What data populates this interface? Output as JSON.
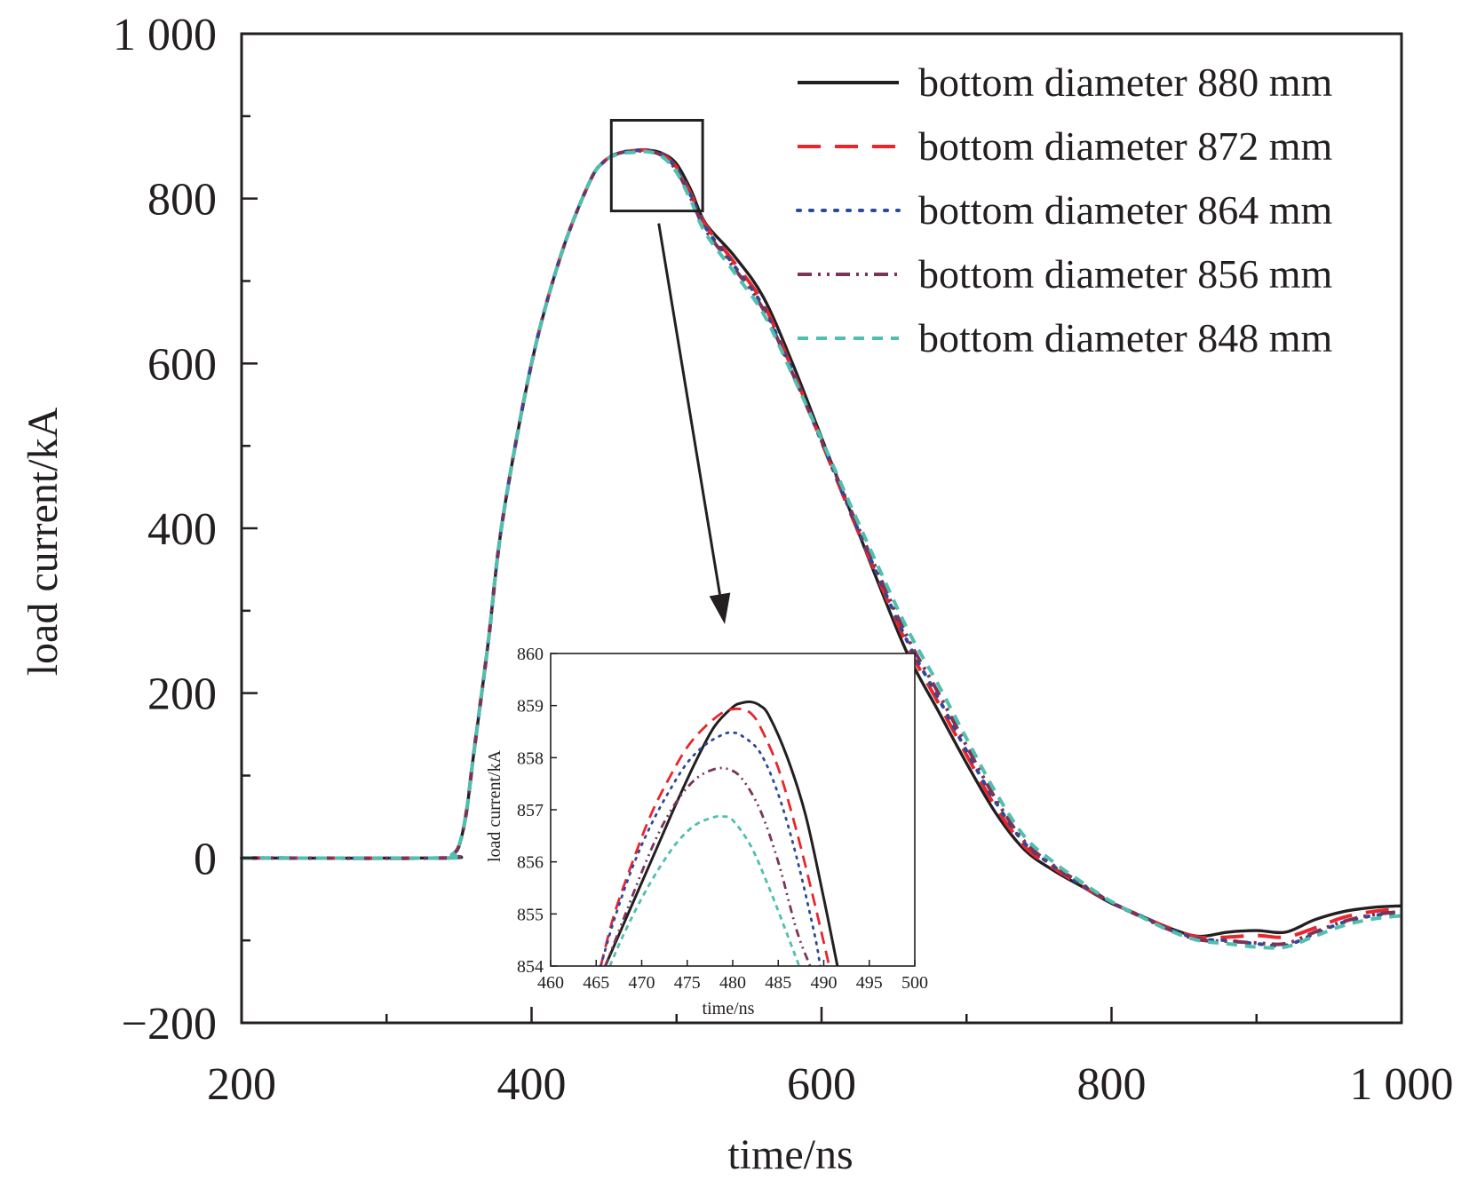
{
  "chart_data": [
    {
      "type": "line",
      "xlabel": "time/ns",
      "ylabel": "load current/kA",
      "xlim": [
        200,
        1000
      ],
      "ylim": [
        -200,
        1000
      ],
      "xticks": [
        "200",
        "400",
        "600",
        "800",
        "1 000"
      ],
      "xtick_values": [
        200,
        400,
        600,
        800,
        1000
      ],
      "yticks": [
        "−200",
        "0",
        "200",
        "400",
        "600",
        "800",
        "1 000"
      ],
      "ytick_values": [
        -200,
        0,
        200,
        400,
        600,
        800,
        1000
      ],
      "legend_position": "top-right",
      "series": [
        {
          "name": "bottom diameter 880 mm",
          "color": "#231f20",
          "dash": "solid",
          "x": [
            200,
            340,
            345,
            350,
            355,
            360,
            370,
            380,
            400,
            420,
            440,
            450,
            460,
            470,
            480,
            490,
            500,
            510,
            520,
            540,
            560,
            580,
            600,
            620,
            640,
            660,
            680,
            700,
            720,
            740,
            760,
            780,
            800,
            820,
            840,
            860,
            880,
            900,
            920,
            940,
            960,
            980,
            1000
          ],
          "y": [
            0,
            0,
            4,
            15,
            55,
            125,
            260,
            410,
            600,
            730,
            820,
            845,
            855,
            858,
            859,
            855,
            842,
            810,
            770,
            730,
            680,
            600,
            510,
            420,
            330,
            245,
            180,
            115,
            55,
            10,
            -15,
            -35,
            -55,
            -70,
            -85,
            -95,
            -90,
            -88,
            -90,
            -75,
            -65,
            -60,
            -58
          ]
        },
        {
          "name": "bottom diameter 872 mm",
          "color": "#e8262c",
          "dash": "long-dash",
          "x": [
            200,
            340,
            345,
            350,
            355,
            360,
            370,
            380,
            400,
            420,
            440,
            450,
            460,
            470,
            480,
            490,
            500,
            510,
            520,
            540,
            560,
            580,
            600,
            620,
            640,
            660,
            680,
            700,
            720,
            740,
            760,
            780,
            800,
            820,
            840,
            860,
            880,
            900,
            920,
            940,
            960,
            980,
            1000
          ],
          "y": [
            0,
            0,
            4,
            15,
            55,
            125,
            260,
            410,
            600,
            730,
            820,
            845,
            855,
            858,
            858.9,
            854,
            838,
            805,
            768,
            722,
            672,
            592,
            505,
            418,
            335,
            255,
            190,
            125,
            62,
            14,
            -12,
            -34,
            -54,
            -70,
            -85,
            -96,
            -96,
            -94,
            -96,
            -85,
            -72,
            -65,
            -62
          ]
        },
        {
          "name": "bottom diameter 864 mm",
          "color": "#2c4a9b",
          "dash": "dot",
          "x": [
            200,
            340,
            345,
            350,
            355,
            360,
            370,
            380,
            400,
            420,
            440,
            450,
            460,
            470,
            480,
            490,
            500,
            510,
            520,
            540,
            560,
            580,
            600,
            620,
            640,
            660,
            680,
            700,
            720,
            740,
            760,
            780,
            800,
            820,
            840,
            860,
            880,
            900,
            920,
            940,
            960,
            980,
            1000
          ],
          "y": [
            0,
            0,
            4,
            15,
            55,
            125,
            260,
            410,
            600,
            730,
            820,
            845,
            855,
            858,
            858.5,
            853,
            836,
            803,
            765,
            718,
            668,
            590,
            505,
            420,
            338,
            260,
            196,
            130,
            68,
            18,
            -10,
            -33,
            -54,
            -70,
            -86,
            -98,
            -100,
            -104,
            -106,
            -92,
            -78,
            -70,
            -66
          ]
        },
        {
          "name": "bottom diameter 856 mm",
          "color": "#7b3458",
          "dash": "dash-dot-dot",
          "x": [
            200,
            340,
            345,
            350,
            355,
            360,
            370,
            380,
            400,
            420,
            440,
            450,
            460,
            470,
            480,
            490,
            500,
            510,
            520,
            540,
            560,
            580,
            600,
            620,
            640,
            660,
            680,
            700,
            720,
            740,
            760,
            780,
            800,
            820,
            840,
            860,
            880,
            900,
            920,
            940,
            960,
            980,
            1000
          ],
          "y": [
            0,
            0,
            4,
            15,
            55,
            125,
            260,
            410,
            600,
            730,
            820,
            845,
            855,
            857,
            857.8,
            852,
            834,
            800,
            762,
            715,
            665,
            588,
            506,
            423,
            342,
            265,
            202,
            136,
            72,
            20,
            -9,
            -32,
            -54,
            -71,
            -87,
            -99,
            -101,
            -103,
            -104,
            -90,
            -77,
            -69,
            -65
          ]
        },
        {
          "name": "bottom diameter 848 mm",
          "color": "#4fbfae",
          "dash": "short-dash",
          "x": [
            200,
            340,
            345,
            350,
            355,
            360,
            370,
            380,
            400,
            420,
            440,
            450,
            460,
            470,
            480,
            490,
            500,
            510,
            520,
            540,
            560,
            580,
            600,
            620,
            640,
            660,
            680,
            700,
            720,
            740,
            760,
            780,
            800,
            820,
            840,
            860,
            880,
            900,
            920,
            940,
            960,
            980,
            1000
          ],
          "y": [
            0,
            0,
            4,
            15,
            55,
            125,
            260,
            410,
            600,
            730,
            820,
            845,
            854,
            856,
            856.8,
            851,
            832,
            797,
            758,
            710,
            660,
            586,
            508,
            428,
            350,
            275,
            212,
            145,
            80,
            26,
            -5,
            -30,
            -53,
            -71,
            -88,
            -100,
            -104,
            -108,
            -108,
            -95,
            -82,
            -74,
            -70
          ]
        }
      ]
    },
    {
      "type": "line",
      "xlabel": "time/ns",
      "ylabel": "load current/kA",
      "xlim": [
        460,
        500
      ],
      "ylim": [
        854,
        860
      ],
      "xticks": [
        "460",
        "465",
        "470",
        "475",
        "480",
        "485",
        "490",
        "495",
        "500"
      ],
      "xtick_values": [
        460,
        465,
        470,
        475,
        480,
        485,
        490,
        495,
        500
      ],
      "yticks": [
        "854",
        "855",
        "856",
        "857",
        "858",
        "859",
        "860"
      ],
      "ytick_values": [
        854,
        855,
        856,
        857,
        858,
        859,
        860
      ],
      "series": [
        {
          "color": "#231f20",
          "dash": "solid",
          "x": [
            466,
            468,
            470,
            472,
            474,
            476,
            478,
            480,
            481,
            482,
            483,
            484,
            486,
            488,
            490,
            491.5
          ],
          "y": [
            854,
            854.8,
            855.6,
            856.4,
            857.2,
            857.95,
            858.6,
            858.97,
            859.05,
            859.07,
            859.0,
            858.8,
            858.0,
            856.9,
            855.3,
            854
          ]
        },
        {
          "color": "#e8262c",
          "dash": "long-dash",
          "x": [
            465.5,
            467,
            469,
            471,
            473,
            475,
            477,
            479,
            480,
            481,
            482,
            483,
            485,
            487,
            489,
            490.6
          ],
          "y": [
            854,
            855.0,
            856.0,
            856.9,
            857.6,
            858.2,
            858.6,
            858.88,
            858.93,
            858.93,
            858.85,
            858.6,
            857.8,
            856.6,
            855.2,
            854
          ]
        },
        {
          "color": "#2c4a9b",
          "dash": "dot",
          "x": [
            465.5,
            467,
            469,
            471,
            473,
            475,
            477,
            479,
            480,
            481,
            483,
            485,
            487,
            489,
            489.6
          ],
          "y": [
            854,
            854.9,
            855.9,
            856.7,
            857.35,
            857.9,
            858.25,
            858.45,
            858.48,
            858.42,
            858.1,
            857.3,
            856.1,
            854.6,
            854
          ]
        },
        {
          "color": "#7b3458",
          "dash": "dash-dot-dot",
          "x": [
            466,
            468,
            470,
            472,
            474,
            476,
            478,
            479.5,
            481,
            483,
            485,
            487,
            488.5
          ],
          "y": [
            854,
            854.9,
            855.8,
            856.6,
            857.2,
            857.6,
            857.78,
            857.78,
            857.6,
            857.0,
            856.0,
            854.7,
            854
          ]
        },
        {
          "color": "#4fbfae",
          "dash": "short-dash",
          "x": [
            466.5,
            468,
            470,
            472,
            474,
            476,
            478,
            479,
            480,
            482,
            484,
            486,
            487.3
          ],
          "y": [
            854,
            854.6,
            855.3,
            855.9,
            856.4,
            856.72,
            856.86,
            856.87,
            856.8,
            856.3,
            855.5,
            854.6,
            854
          ]
        }
      ]
    }
  ]
}
